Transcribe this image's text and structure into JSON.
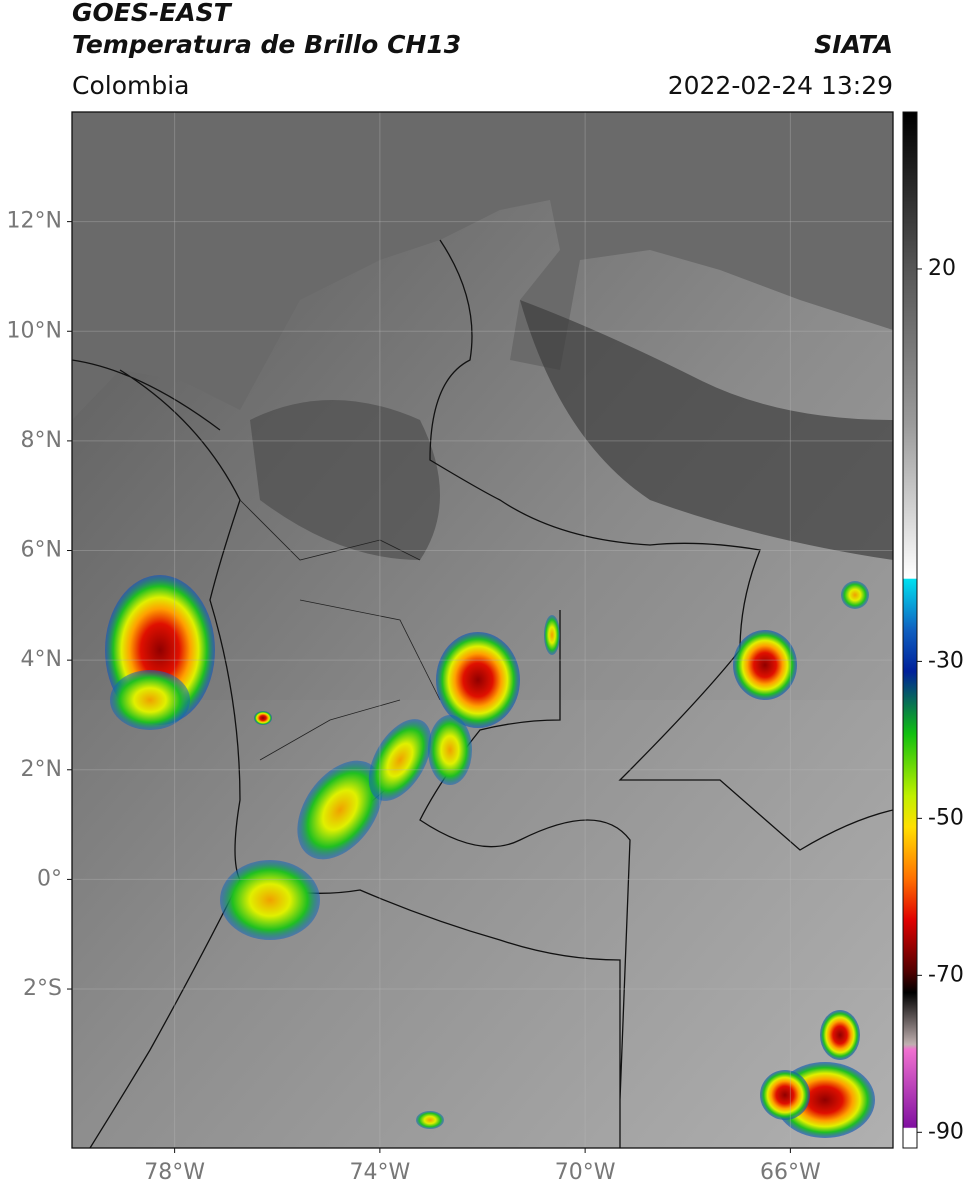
{
  "header": {
    "title": "GOES-EAST",
    "subtitle": "Temperatura de Brillo CH13",
    "region": "Colombia",
    "source": "SIATA",
    "datetime": "2022-02-24 13:29"
  },
  "map": {
    "lon_range": [
      -80,
      -64
    ],
    "lat_range": [
      -4.9,
      14
    ],
    "lat_ticks": [
      {
        "value": 12,
        "label": "12°N"
      },
      {
        "value": 10,
        "label": "10°N"
      },
      {
        "value": 8,
        "label": "8°N"
      },
      {
        "value": 6,
        "label": "6°N"
      },
      {
        "value": 4,
        "label": "4°N"
      },
      {
        "value": 2,
        "label": "2°N"
      },
      {
        "value": 0,
        "label": "0°"
      },
      {
        "value": -2,
        "label": "2°S"
      }
    ],
    "lon_ticks": [
      {
        "value": -78,
        "label": "78°W"
      },
      {
        "value": -74,
        "label": "74°W"
      },
      {
        "value": -70,
        "label": "70°W"
      },
      {
        "value": -66,
        "label": "66°W"
      }
    ],
    "grid": true
  },
  "colorbar": {
    "range": [
      -92,
      40
    ],
    "ticks": [
      20,
      -30,
      -50,
      -70,
      -90
    ]
  }
}
